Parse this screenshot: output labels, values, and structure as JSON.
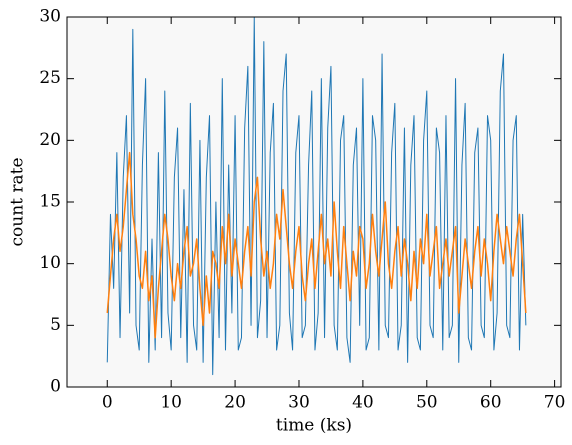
{
  "chart_data": {
    "type": "line",
    "xlabel": "time (ks)",
    "ylabel": "count rate",
    "x": [
      0,
      0.5,
      1,
      1.5,
      2,
      2.5,
      3,
      3.5,
      4,
      4.5,
      5,
      5.5,
      6,
      6.5,
      7,
      7.5,
      8,
      8.5,
      9,
      9.5,
      10,
      10.5,
      11,
      11.5,
      12,
      12.5,
      13,
      13.5,
      14,
      14.5,
      15,
      15.5,
      16,
      16.5,
      17,
      17.5,
      18,
      18.5,
      19,
      19.5,
      20,
      20.5,
      21,
      21.5,
      22,
      22.5,
      23,
      23.5,
      24,
      24.5,
      25,
      25.5,
      26,
      26.5,
      27,
      27.5,
      28,
      28.5,
      29,
      29.5,
      30,
      30.5,
      31,
      31.5,
      32,
      32.5,
      33,
      33.5,
      34,
      34.5,
      35,
      35.5,
      36,
      36.5,
      37,
      37.5,
      38,
      38.5,
      39,
      39.5,
      40,
      40.5,
      41,
      41.5,
      42,
      42.5,
      43,
      43.5,
      44,
      44.5,
      45,
      45.5,
      46,
      46.5,
      47,
      47.5,
      48,
      48.5,
      49,
      49.5,
      50,
      50.5,
      51,
      51.5,
      52,
      52.5,
      53,
      53.5,
      54,
      54.5,
      55,
      55.5,
      56,
      56.5,
      57,
      57.5,
      58,
      58.5,
      59,
      59.5,
      60,
      60.5,
      61,
      61.5,
      62,
      62.5,
      63,
      63.5,
      64,
      64.5,
      65,
      65.5
    ],
    "series": [
      {
        "color": "#1f77b4",
        "values": [
          2,
          14,
          8,
          19,
          4,
          17,
          22,
          6,
          29,
          5,
          3,
          18,
          25,
          2,
          12,
          3,
          19,
          4,
          24,
          6,
          3,
          17,
          21,
          4,
          16,
          2,
          23,
          5,
          3,
          20,
          2,
          17,
          22,
          1,
          15,
          4,
          25,
          3,
          18,
          6,
          22,
          3,
          4,
          21,
          26,
          5,
          30,
          4,
          7,
          28,
          4,
          19,
          23,
          3,
          5,
          24,
          27,
          6,
          3,
          19,
          22,
          4,
          5,
          18,
          24,
          3,
          6,
          25,
          4,
          21,
          26,
          5,
          3,
          20,
          22,
          4,
          2,
          18,
          21,
          5,
          25,
          3,
          4,
          22,
          20,
          3,
          27,
          5,
          4,
          19,
          23,
          3,
          5,
          21,
          2,
          18,
          22,
          4,
          3,
          20,
          24,
          5,
          4,
          21,
          19,
          3,
          22,
          4,
          5,
          25,
          2,
          18,
          23,
          4,
          3,
          19,
          21,
          5,
          4,
          22,
          20,
          3,
          6,
          24,
          27,
          5,
          4,
          20,
          22,
          3,
          14,
          5
        ]
      },
      {
        "color": "#ff7f0e",
        "values": [
          6,
          9,
          12,
          14,
          11,
          13,
          16,
          19,
          14,
          12,
          9,
          8,
          11,
          7,
          9,
          4,
          8,
          11,
          14,
          12,
          9,
          7,
          10,
          8,
          11,
          13,
          9,
          10,
          12,
          8,
          5,
          9,
          6,
          11,
          10,
          8,
          13,
          10,
          14,
          9,
          12,
          10,
          8,
          11,
          13,
          9,
          15,
          17,
          12,
          9,
          11,
          8,
          10,
          14,
          12,
          16,
          13,
          10,
          8,
          11,
          13,
          9,
          7,
          10,
          12,
          8,
          11,
          14,
          10,
          12,
          9,
          15,
          11,
          8,
          13,
          10,
          7,
          11,
          9,
          13,
          12,
          8,
          10,
          14,
          11,
          9,
          12,
          15,
          10,
          8,
          11,
          13,
          9,
          12,
          10,
          7,
          11,
          8,
          12,
          10,
          14,
          9,
          11,
          13,
          8,
          10,
          12,
          9,
          11,
          13,
          6,
          9,
          12,
          10,
          8,
          11,
          13,
          9,
          12,
          10,
          7,
          11,
          14,
          12,
          10,
          13,
          11,
          9,
          12,
          14,
          10,
          6
        ]
      }
    ],
    "xlim": [
      -6.3,
      71
    ],
    "ylim": [
      0,
      30
    ],
    "xticks": [
      0,
      10,
      20,
      30,
      40,
      50,
      60,
      70
    ],
    "yticks": [
      0,
      5,
      10,
      15,
      20,
      25,
      30
    ]
  }
}
